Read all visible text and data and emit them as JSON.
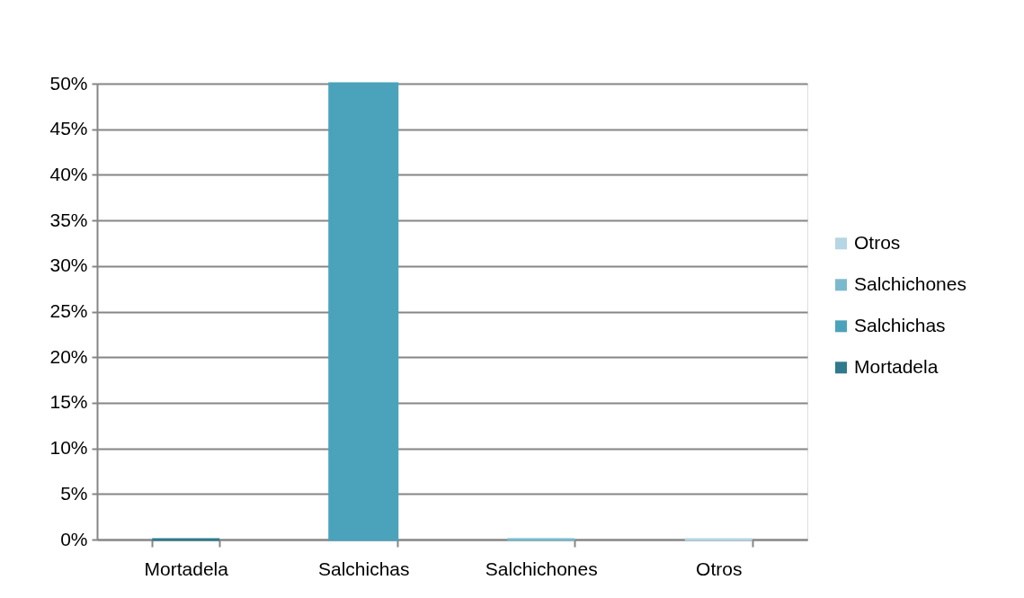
{
  "chart_data": {
    "type": "bar",
    "categories": [
      "Mortadela",
      "Salchichas",
      "Salchichones",
      "Otros"
    ],
    "series": [
      {
        "name": "Mortadela",
        "color": "#2f7a8c",
        "values": [
          0,
          null,
          null,
          null
        ]
      },
      {
        "name": "Salchichas",
        "color": "#4aa3ba",
        "values": [
          null,
          50,
          null,
          null
        ]
      },
      {
        "name": "Salchichones",
        "color": "#7bbacd",
        "values": [
          null,
          null,
          0,
          null
        ]
      },
      {
        "name": "Otros",
        "color": "#b5d6e2",
        "values": [
          null,
          null,
          null,
          0
        ]
      }
    ],
    "ylim": [
      0,
      50
    ],
    "yticks": [
      {
        "value": 0,
        "label": "0%"
      },
      {
        "value": 5,
        "label": "5%"
      },
      {
        "value": 10,
        "label": "10%"
      },
      {
        "value": 15,
        "label": "15%"
      },
      {
        "value": 20,
        "label": "20%"
      },
      {
        "value": 25,
        "label": "25%"
      },
      {
        "value": 30,
        "label": "30%"
      },
      {
        "value": 35,
        "label": "35%"
      },
      {
        "value": 40,
        "label": "40%"
      },
      {
        "value": 45,
        "label": "45%"
      },
      {
        "value": 50,
        "label": "50%"
      }
    ],
    "grid": "y",
    "legend": "right"
  }
}
